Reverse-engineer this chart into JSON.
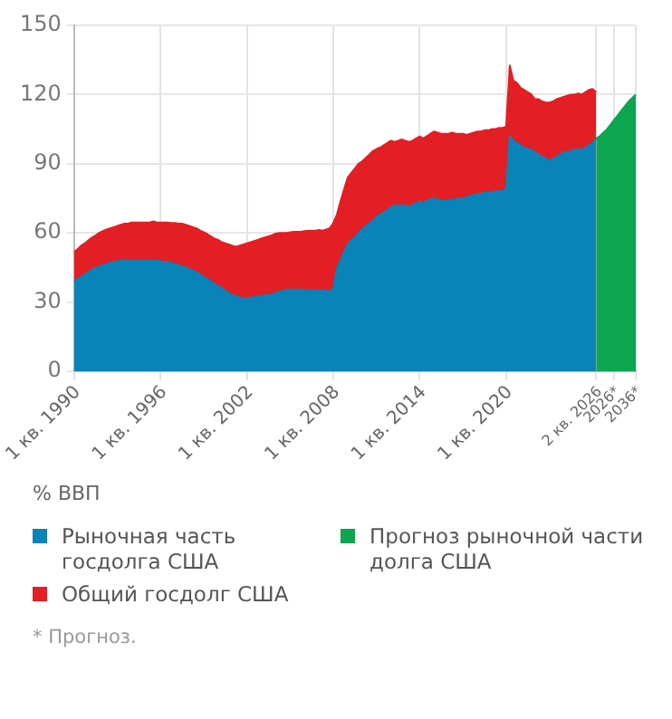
{
  "chart_data": {
    "type": "area",
    "ylabel": "% ВВП",
    "ylim": [
      0,
      150
    ],
    "yticks": [
      0,
      30,
      60,
      90,
      120,
      150
    ],
    "grid": true,
    "legend": "bottom",
    "marker": "none",
    "categories": [
      "1 кв. 1990",
      null,
      null,
      null,
      null,
      null,
      null,
      null,
      null,
      null,
      null,
      null,
      null,
      null,
      null,
      null,
      null,
      null,
      null,
      null,
      null,
      null,
      null,
      null,
      "1 кв. 1996",
      null,
      null,
      null,
      null,
      null,
      null,
      null,
      null,
      null,
      null,
      null,
      null,
      null,
      null,
      null,
      null,
      null,
      null,
      null,
      null,
      null,
      null,
      null,
      "1 кв. 2002",
      null,
      null,
      null,
      null,
      null,
      null,
      null,
      null,
      null,
      null,
      null,
      null,
      null,
      null,
      null,
      null,
      null,
      null,
      null,
      null,
      null,
      null,
      null,
      "1 кв. 2008",
      null,
      null,
      null,
      null,
      null,
      null,
      null,
      null,
      null,
      null,
      null,
      null,
      null,
      null,
      null,
      null,
      null,
      null,
      null,
      null,
      null,
      null,
      null,
      "1 кв. 2014",
      null,
      null,
      null,
      null,
      null,
      null,
      null,
      null,
      null,
      null,
      null,
      null,
      null,
      null,
      null,
      null,
      null,
      null,
      null,
      null,
      null,
      null,
      null,
      "1 кв. 2020",
      null,
      null,
      null,
      null,
      null,
      null,
      null,
      null,
      null,
      null,
      null,
      null,
      null,
      null,
      null,
      null,
      null,
      null,
      null,
      null,
      null,
      null,
      null,
      null,
      "2 кв. 2026",
      null,
      null,
      null,
      null,
      "2026*",
      null,
      null,
      null,
      null,
      null,
      "2036*"
    ],
    "series": [
      {
        "name": "Рыночная часть госдолга США",
        "color": "#0a83b8",
        "values": [
          39,
          40,
          41,
          42,
          43,
          44,
          45,
          45.5,
          46,
          46.5,
          47,
          47.5,
          47.7,
          48,
          48,
          48,
          48,
          48,
          48,
          48,
          48,
          48,
          48,
          48,
          47.7,
          47.5,
          47.3,
          47,
          46.5,
          46,
          45.5,
          45,
          44.5,
          43.5,
          43,
          42,
          41,
          40,
          39,
          38,
          37,
          36,
          35,
          34,
          33,
          32.5,
          32,
          31.6,
          31.6,
          32,
          32,
          32.5,
          32.5,
          33,
          33,
          33.5,
          34,
          34.5,
          35,
          35.4,
          35.4,
          35.4,
          35.4,
          35.4,
          35.4,
          35,
          35.4,
          35,
          35,
          35.4,
          35,
          34.5,
          36,
          45,
          48,
          52,
          55,
          57,
          58,
          60,
          61.6,
          63,
          64,
          65.5,
          67,
          68,
          69,
          70,
          71,
          72,
          72,
          72,
          72,
          71.5,
          72,
          73,
          73.7,
          73,
          74,
          74.5,
          75,
          74.5,
          74,
          74,
          74,
          74.5,
          74.5,
          75,
          75,
          75.5,
          76,
          76.5,
          77,
          77,
          77.5,
          77.5,
          77.7,
          78,
          78,
          78.5,
          79,
          102,
          100,
          99,
          98,
          97,
          96.5,
          96,
          95,
          94,
          93,
          92.5,
          91,
          92,
          93,
          94,
          95,
          95,
          95.5,
          96,
          96.4,
          96,
          97,
          98,
          99,
          101,
          null,
          null,
          null,
          null,
          null,
          null,
          null,
          null,
          null,
          null,
          null
        ]
      },
      {
        "name": "Общий госдолг США",
        "color": "#e31e24",
        "values": [
          51.7,
          53,
          54.5,
          55.5,
          56.8,
          58,
          59,
          60,
          60.8,
          61.5,
          62,
          62.5,
          63,
          63.5,
          64,
          64,
          64.5,
          64.5,
          64.5,
          64.5,
          64.5,
          64.5,
          65,
          64.5,
          64.5,
          64.5,
          64.5,
          64.3,
          64.3,
          64,
          64,
          63.5,
          63,
          62.5,
          62,
          61,
          60.3,
          59.5,
          58.5,
          57.5,
          57,
          56,
          55.5,
          55,
          54.4,
          54,
          54.5,
          55,
          55.5,
          56,
          56.5,
          57,
          57.6,
          58,
          58.5,
          59,
          59.7,
          60,
          60,
          60,
          60.3,
          60.5,
          60.5,
          60.5,
          60.8,
          61,
          61,
          61,
          61.3,
          61,
          61.5,
          62,
          64.3,
          68,
          73.7,
          79,
          84,
          86,
          88,
          90,
          91,
          92.5,
          94,
          95.5,
          96.4,
          97,
          98,
          99,
          100,
          99.5,
          100,
          100.5,
          100,
          99.5,
          100,
          101,
          101.8,
          101,
          102,
          103,
          104,
          103.5,
          103,
          103,
          103,
          103.5,
          103,
          103,
          103,
          102.5,
          103,
          103.5,
          104,
          104,
          104.5,
          104.5,
          105,
          105,
          105.5,
          105.5,
          106,
          132.6,
          126,
          125,
          123,
          122,
          121,
          120,
          118,
          118,
          117,
          116.5,
          116.5,
          117,
          118,
          118.5,
          119,
          119.5,
          120,
          120,
          120.5,
          120,
          121,
          122,
          122.4,
          121,
          null,
          null,
          null,
          null,
          null,
          null,
          null,
          null,
          null,
          null,
          null
        ]
      },
      {
        "name": "Прогноз рыночной части долга США",
        "color": "#0ca550",
        "values": [
          null,
          null,
          null,
          null,
          null,
          null,
          null,
          null,
          null,
          null,
          null,
          null,
          null,
          null,
          null,
          null,
          null,
          null,
          null,
          null,
          null,
          null,
          null,
          null,
          null,
          null,
          null,
          null,
          null,
          null,
          null,
          null,
          null,
          null,
          null,
          null,
          null,
          null,
          null,
          null,
          null,
          null,
          null,
          null,
          null,
          null,
          null,
          null,
          null,
          null,
          null,
          null,
          null,
          null,
          null,
          null,
          null,
          null,
          null,
          null,
          null,
          null,
          null,
          null,
          null,
          null,
          null,
          null,
          null,
          null,
          null,
          null,
          null,
          null,
          null,
          null,
          null,
          null,
          null,
          null,
          null,
          null,
          null,
          null,
          null,
          null,
          null,
          null,
          null,
          null,
          null,
          null,
          null,
          null,
          null,
          null,
          null,
          null,
          null,
          null,
          null,
          null,
          null,
          null,
          null,
          null,
          null,
          null,
          null,
          null,
          null,
          null,
          null,
          null,
          null,
          null,
          null,
          null,
          null,
          null,
          null,
          null,
          null,
          null,
          null,
          null,
          null,
          null,
          null,
          null,
          null,
          null,
          null,
          null,
          null,
          null,
          null,
          null,
          null,
          null,
          null,
          null,
          null,
          null,
          null,
          101,
          102,
          103.5,
          105,
          107,
          109,
          111,
          113,
          115,
          117,
          118.5,
          120
        ]
      }
    ],
    "annotations": [
      "* Прогноз."
    ]
  }
}
